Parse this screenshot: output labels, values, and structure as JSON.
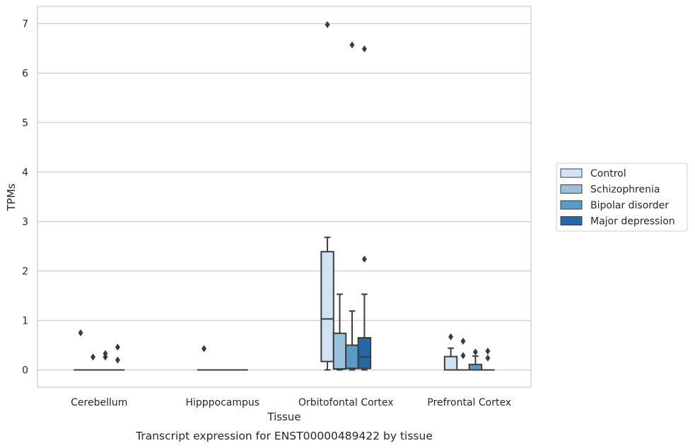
{
  "chart_data": {
    "type": "box",
    "caption": "Transcript expression for ENST00000489422 by tissue",
    "xlabel": "Tissue",
    "ylabel": "TPMs",
    "ylim": [
      -0.35,
      7.35
    ],
    "yticks": [
      0,
      1,
      2,
      3,
      4,
      5,
      6,
      7
    ],
    "grid": "horizontal",
    "legend_position": "right",
    "categories": [
      "Cerebellum",
      "Hipppocampus",
      "Orbitofontal Cortex",
      "Prefrontal Cortex"
    ],
    "series": [
      {
        "name": "Control",
        "color": "#d1e2f2",
        "boxes": [
          {
            "q1": 0,
            "median": 0,
            "q3": 0,
            "whislo": 0,
            "whishi": 0,
            "fliers": [
              0.75
            ]
          },
          {
            "q1": 0,
            "median": 0,
            "q3": 0,
            "whislo": 0,
            "whishi": 0,
            "fliers": [
              0.43
            ]
          },
          {
            "q1": 0.17,
            "median": 1.03,
            "q3": 2.39,
            "whislo": 0,
            "whishi": 2.68,
            "fliers": [
              6.98
            ]
          },
          {
            "q1": 0,
            "median": 0,
            "q3": 0.27,
            "whislo": 0,
            "whishi": 0.44,
            "fliers": [
              0.67
            ]
          }
        ]
      },
      {
        "name": "Schizophrenia",
        "color": "#9ac2dc",
        "boxes": [
          {
            "q1": 0,
            "median": 0,
            "q3": 0,
            "whislo": 0,
            "whishi": 0,
            "fliers": [
              0.26
            ]
          },
          {
            "q1": 0,
            "median": 0,
            "q3": 0,
            "whislo": 0,
            "whishi": 0,
            "fliers": []
          },
          {
            "q1": 0.02,
            "median": 0.02,
            "q3": 0.74,
            "whislo": 0,
            "whishi": 1.53,
            "fliers": []
          },
          {
            "q1": 0,
            "median": 0,
            "q3": 0,
            "whislo": 0,
            "whishi": 0,
            "fliers": [
              0.58,
              0.29
            ]
          }
        ]
      },
      {
        "name": "Bipolar disorder",
        "color": "#5a9ac8",
        "boxes": [
          {
            "q1": 0,
            "median": 0,
            "q3": 0,
            "whislo": 0,
            "whishi": 0,
            "fliers": [
              0.33,
              0.26
            ]
          },
          {
            "q1": 0,
            "median": 0,
            "q3": 0,
            "whislo": 0,
            "whishi": 0,
            "fliers": []
          },
          {
            "q1": 0.03,
            "median": 0.03,
            "q3": 0.5,
            "whislo": 0,
            "whishi": 1.19,
            "fliers": [
              6.57
            ]
          },
          {
            "q1": 0,
            "median": 0,
            "q3": 0.11,
            "whislo": 0,
            "whishi": 0.28,
            "fliers": [
              0.36
            ]
          }
        ]
      },
      {
        "name": "Major depression",
        "color": "#2369a9",
        "boxes": [
          {
            "q1": 0,
            "median": 0,
            "q3": 0,
            "whislo": 0,
            "whishi": 0,
            "fliers": [
              0.46,
              0.2
            ]
          },
          {
            "q1": 0,
            "median": 0,
            "q3": 0,
            "whislo": 0,
            "whishi": 0,
            "fliers": []
          },
          {
            "q1": 0.03,
            "median": 0.26,
            "q3": 0.65,
            "whislo": 0,
            "whishi": 1.53,
            "fliers": [
              6.49,
              2.24
            ]
          },
          {
            "q1": 0,
            "median": 0,
            "q3": 0,
            "whislo": 0,
            "whishi": 0,
            "fliers": [
              0.38,
              0.24
            ]
          }
        ]
      }
    ]
  }
}
